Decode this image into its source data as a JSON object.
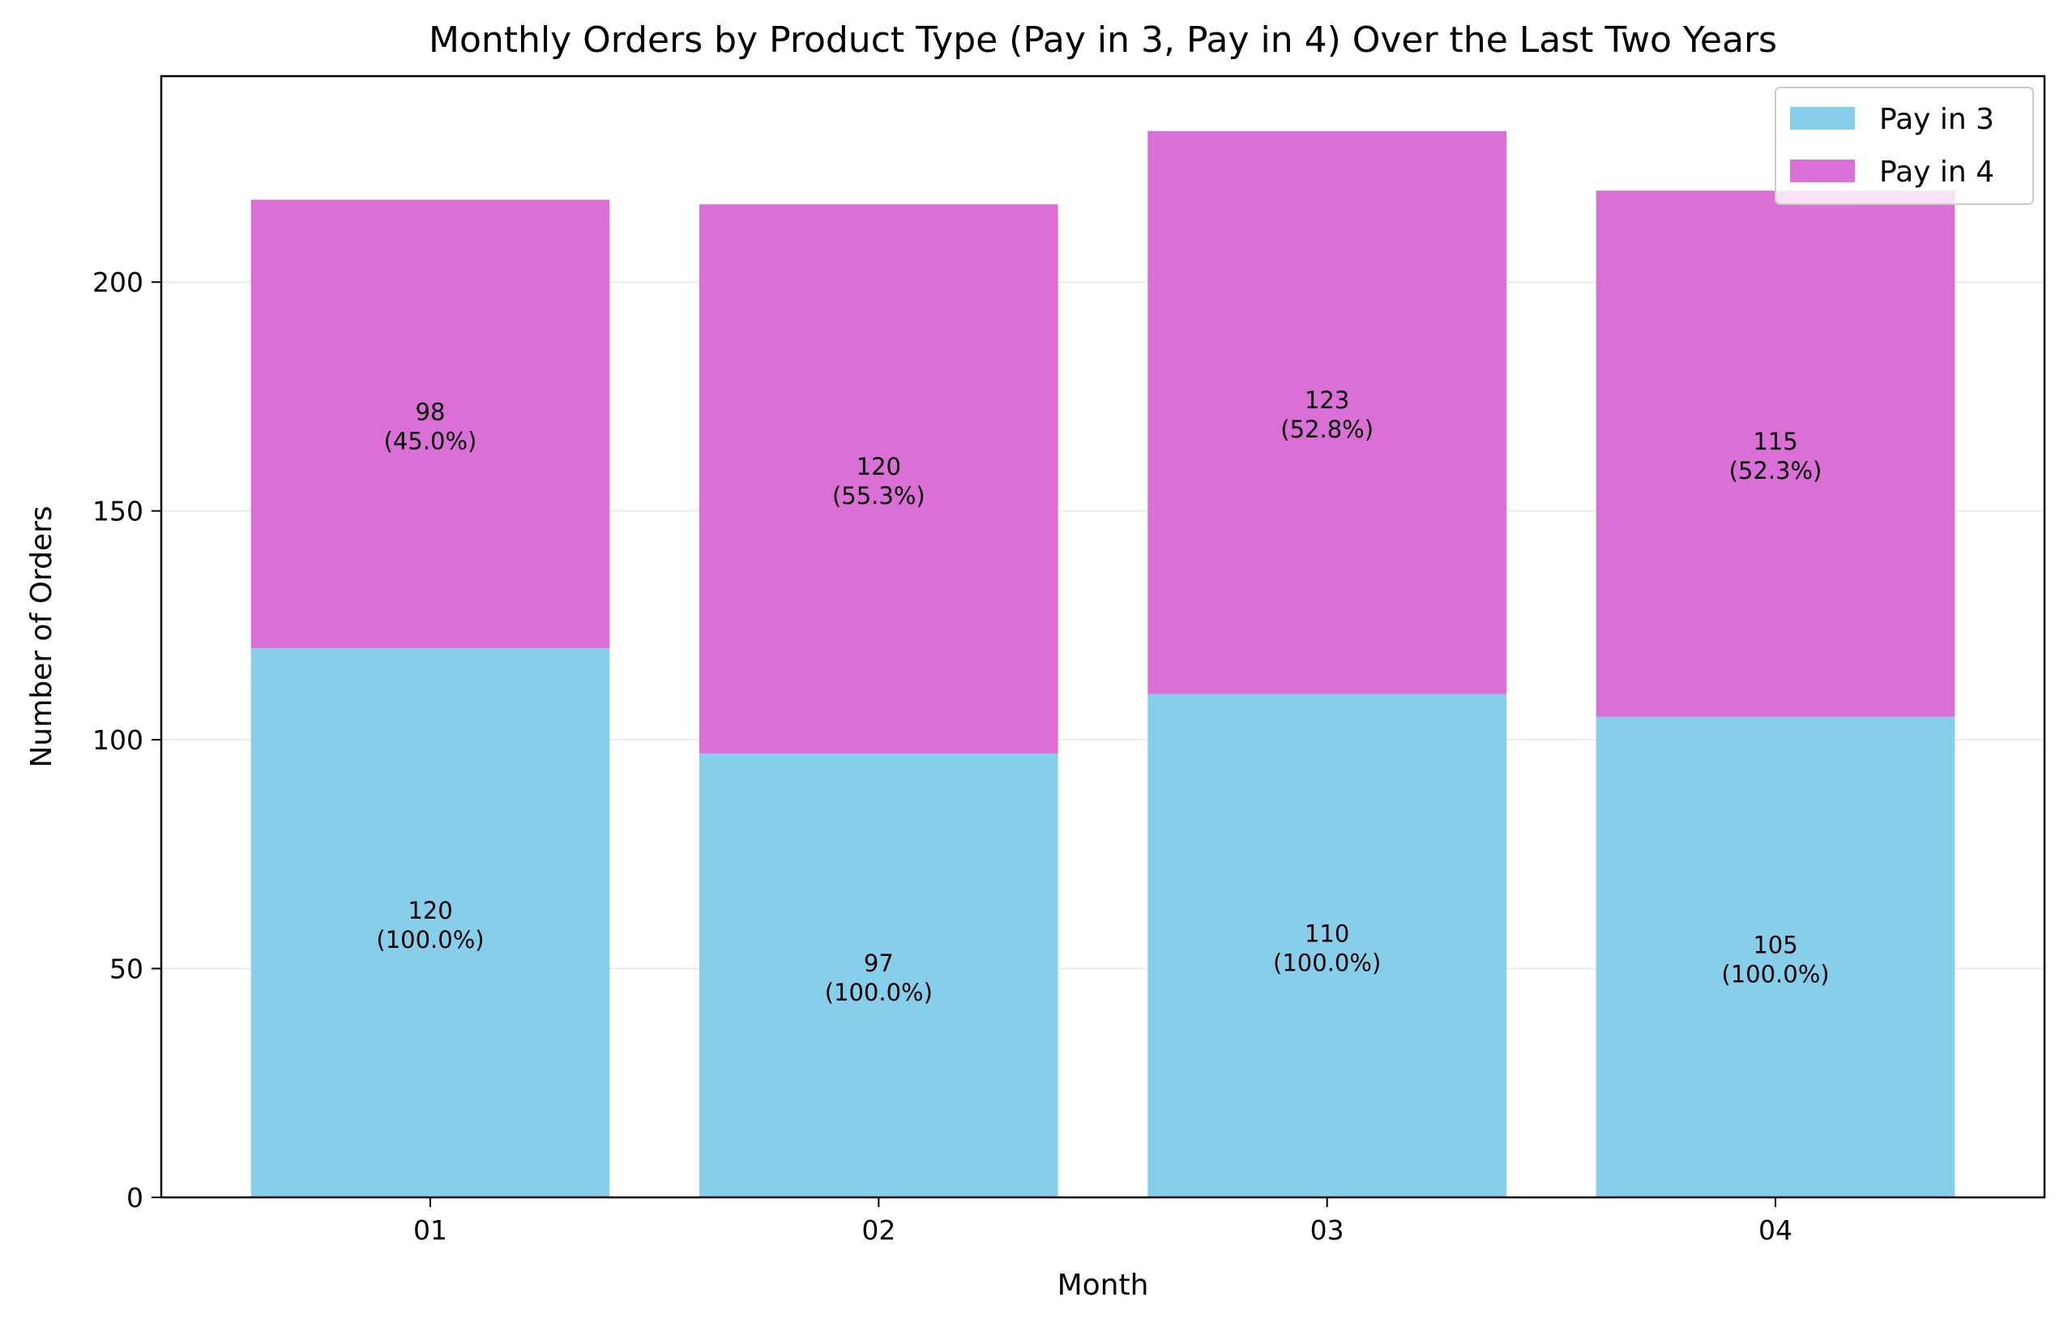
{
  "chart_data": {
    "type": "bar",
    "stacked": true,
    "title": "Monthly Orders by Product Type (Pay in 3, Pay in 4) Over the Last Two Years",
    "xlabel": "Month",
    "ylabel": "Number of Orders",
    "categories": [
      "01",
      "02",
      "03",
      "04"
    ],
    "ylim": [
      0,
      245
    ],
    "yticks": [
      0,
      50,
      100,
      150,
      200
    ],
    "grid": "horizontal",
    "legend_position": "top-right",
    "series": [
      {
        "name": "Pay in 3",
        "color": "#87CEEB",
        "values": [
          120,
          97,
          110,
          105
        ],
        "labels": [
          "(100.0%)",
          "(100.0%)",
          "(100.0%)",
          "(100.0%)"
        ]
      },
      {
        "name": "Pay in 4",
        "color": "#DA70D6",
        "values": [
          98,
          120,
          123,
          115
        ],
        "labels": [
          "(45.0%)",
          "(55.3%)",
          "(52.8%)",
          "(52.3%)"
        ]
      }
    ]
  }
}
